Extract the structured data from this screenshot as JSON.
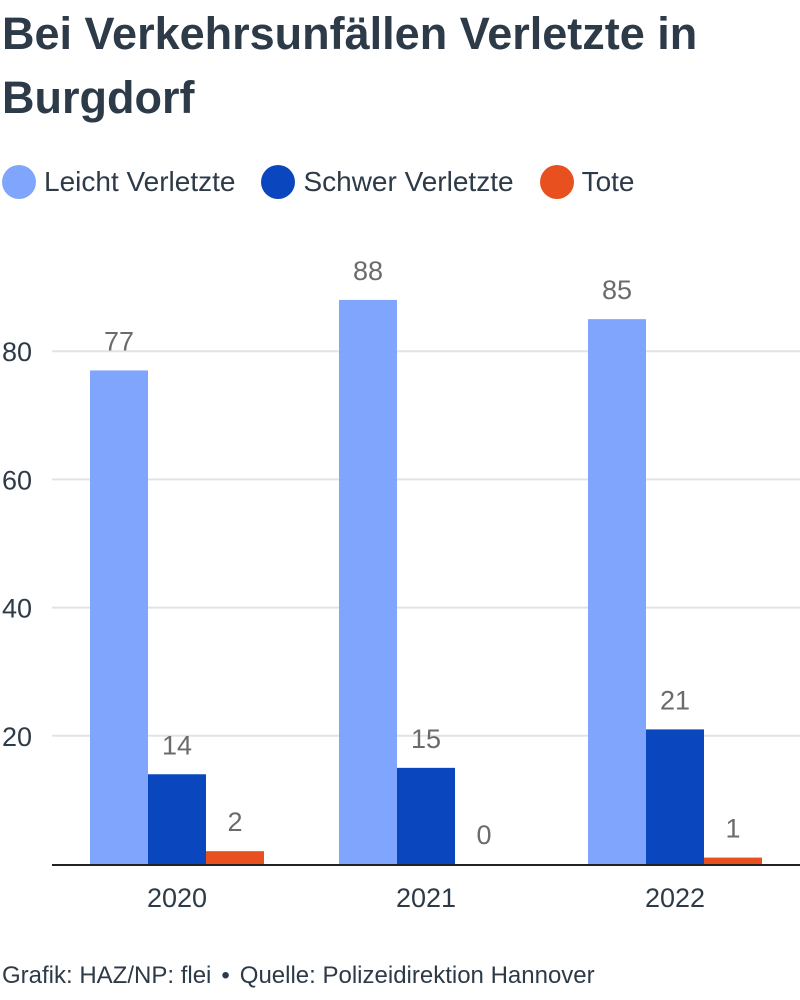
{
  "chart_data": {
    "type": "bar",
    "title": "Bei Verkehrsunfällen Verletzte in Burgdorf",
    "categories": [
      "2020",
      "2021",
      "2022"
    ],
    "series": [
      {
        "name": "Leicht Verletzte",
        "color": "#7fa6fc",
        "values": [
          77,
          88,
          85
        ]
      },
      {
        "name": "Schwer Verletzte",
        "color": "#0a46bd",
        "values": [
          14,
          15,
          21
        ]
      },
      {
        "name": "Tote",
        "color": "#e8501f",
        "values": [
          2,
          0,
          1
        ]
      }
    ],
    "yticks": [
      20,
      40,
      60,
      80
    ],
    "ylim": [
      0,
      100
    ],
    "grid": true,
    "legend_position": "top-left",
    "data_labels": true
  },
  "footer": {
    "credit": "Grafik: HAZ/NP: flei",
    "separator": "•",
    "source": "Quelle: Polizeidirektion Hannover"
  }
}
